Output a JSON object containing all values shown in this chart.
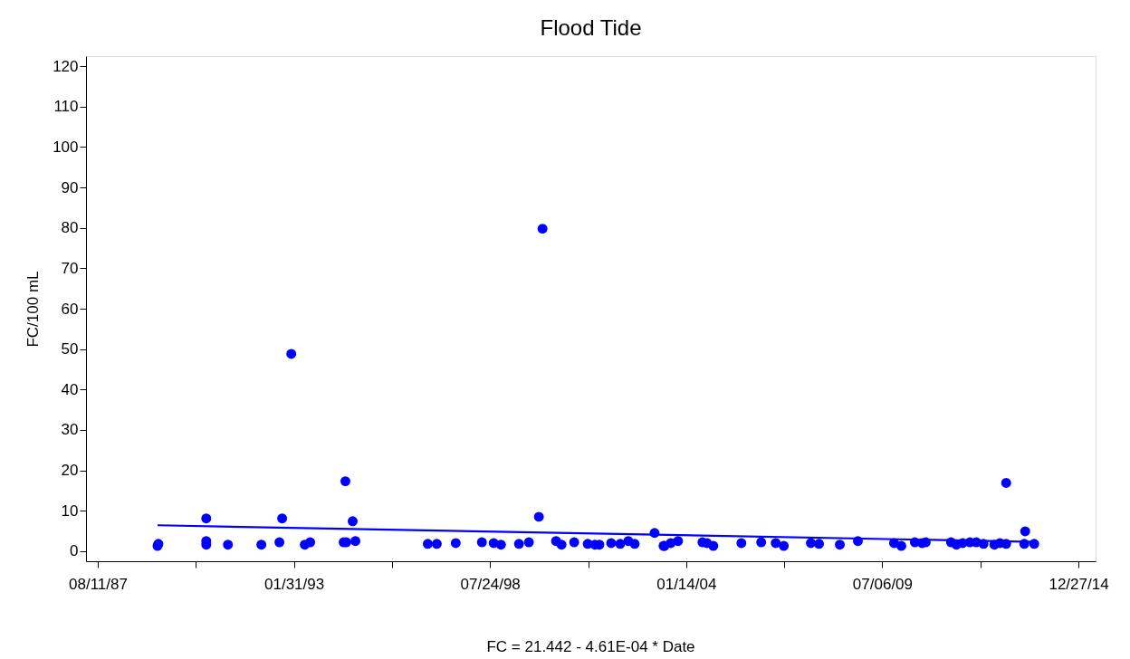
{
  "chart_data": {
    "type": "scatter",
    "title": "Flood Tide",
    "ylabel": "FC/100 mL",
    "annotations": [
      "FC = 21.442 - 4.61E-04 * Date"
    ],
    "xlim": [
      "1987-04-13",
      "2015-06-20"
    ],
    "ylim": [
      -2.5,
      122.5
    ],
    "xticks": [
      {
        "value": "1987-08-11",
        "label": "08/11/87"
      },
      {
        "value": "1990-05-07",
        "label": null
      },
      {
        "value": "1993-01-31",
        "label": "01/31/93"
      },
      {
        "value": "1995-10-28",
        "label": null
      },
      {
        "value": "1998-07-24",
        "label": "07/24/98"
      },
      {
        "value": "2001-04-19",
        "label": null
      },
      {
        "value": "2004-01-14",
        "label": "01/14/04"
      },
      {
        "value": "2006-10-10",
        "label": null
      },
      {
        "value": "2009-07-06",
        "label": "07/06/09"
      },
      {
        "value": "2012-04-01",
        "label": null
      },
      {
        "value": "2014-12-27",
        "label": "12/27/14"
      }
    ],
    "yticks": [
      0,
      10,
      20,
      30,
      40,
      50,
      60,
      70,
      80,
      90,
      100,
      110,
      120
    ],
    "grid": false,
    "legend": false,
    "series": [
      {
        "type": "scatter",
        "marker": "circle",
        "color": "#0000ff",
        "x": [
          "1989-04-11",
          "1989-04-20",
          "1990-08-21",
          "1990-08-21",
          "1990-08-21",
          "1991-03-30",
          "1992-03-05",
          "1992-09-05",
          "1992-10-03",
          "1993-01-04",
          "1993-05-22",
          "1993-07-16",
          "1994-06-22",
          "1994-07-10",
          "1994-07-19",
          "1994-09-22",
          "1994-10-20",
          "1996-10-27",
          "1997-01-27",
          "1997-08-08",
          "1998-05-02",
          "1998-08-30",
          "1998-11-12",
          "1999-05-15",
          "1999-08-24",
          "1999-12-04",
          "2000-01-10",
          "2000-05-27",
          "2000-07-22",
          "2000-11-28",
          "2001-04-15",
          "2001-06-27",
          "2001-08-12",
          "2001-12-10",
          "2002-03-12",
          "2002-06-03",
          "2002-08-07",
          "2003-02-26",
          "2003-05-28",
          "2003-06-07",
          "2003-08-10",
          "2003-10-23",
          "2004-06-28",
          "2004-08-13",
          "2004-10-17",
          "2005-07-30",
          "2006-02-17",
          "2006-07-15",
          "2006-10-05",
          "2007-07-09",
          "2007-09-30",
          "2008-04-29",
          "2008-10-30",
          "2009-11-03",
          "2010-01-16",
          "2010-06-03",
          "2010-08-16",
          "2010-09-22",
          "2011-06-07",
          "2011-08-01",
          "2011-10-04",
          "2011-12-17",
          "2012-02-19",
          "2012-05-03",
          "2012-08-22",
          "2012-10-17",
          "2012-12-20",
          "2012-12-20",
          "2013-06-23",
          "2013-07-02",
          "2013-10-02"
        ],
        "values": [
          1.3,
          1.8,
          8.1,
          2.5,
          1.6,
          1.6,
          1.6,
          2.2,
          8.1,
          48.8,
          1.6,
          2.2,
          2.2,
          17.3,
          2.2,
          7.4,
          2.5,
          1.8,
          1.8,
          2.0,
          2.2,
          2.0,
          1.6,
          1.8,
          2.2,
          8.5,
          79.8,
          2.5,
          1.6,
          2.2,
          1.8,
          1.6,
          1.6,
          2.0,
          1.8,
          2.5,
          1.8,
          4.5,
          1.3,
          1.3,
          2.0,
          2.5,
          2.2,
          2.0,
          1.3,
          2.0,
          2.2,
          2.0,
          1.3,
          2.0,
          1.8,
          1.6,
          2.5,
          2.0,
          1.3,
          2.2,
          2.0,
          2.2,
          2.2,
          1.6,
          2.0,
          2.2,
          2.2,
          1.8,
          1.6,
          2.0,
          1.8,
          16.9,
          1.8,
          4.9,
          1.8
        ]
      },
      {
        "type": "line",
        "marker": "none",
        "line_style": "solid",
        "color": "#0000ff",
        "x": [
          "1989-04-11",
          "2013-10-02"
        ],
        "values": [
          6.4,
          2.3
        ]
      }
    ]
  }
}
